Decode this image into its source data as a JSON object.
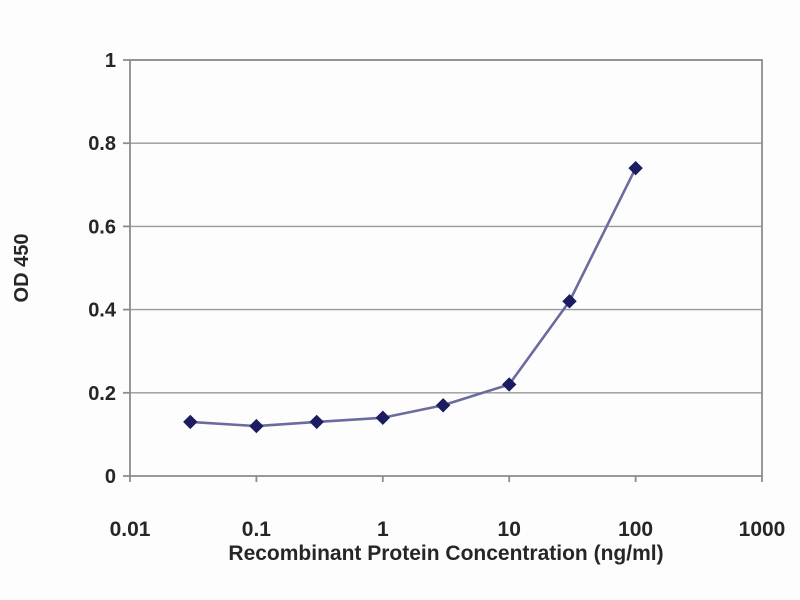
{
  "chart_data": {
    "type": "line",
    "x_scale": "log",
    "x": [
      0.03,
      0.1,
      0.3,
      1,
      3,
      10,
      30,
      100
    ],
    "y": [
      0.13,
      0.12,
      0.13,
      0.14,
      0.17,
      0.22,
      0.42,
      0.74
    ],
    "title": "",
    "xlabel": "Recombinant Protein Concentration (ng/ml)",
    "ylabel": "OD 450",
    "xlim": [
      0.01,
      1000
    ],
    "ylim": [
      0,
      1
    ],
    "x_ticks": [
      0.01,
      0.1,
      1,
      10,
      100,
      1000
    ],
    "x_tick_labels": [
      "0.01",
      "0.1",
      "1",
      "10",
      "100",
      "1000"
    ],
    "y_ticks": [
      0,
      0.2,
      0.4,
      0.6,
      0.8,
      1
    ],
    "y_tick_labels": [
      "0",
      "0.2",
      "0.4",
      "0.6",
      "0.8",
      "1"
    ],
    "grid": "horizontal-only",
    "legend": "none",
    "marker_shape": "diamond",
    "colors": {
      "line": "#6b6b9f",
      "marker": "#1c1c60",
      "grid": "#999999",
      "plot_border": "#8c8c8c",
      "text": "#262626",
      "background": "#fdfdfd"
    }
  }
}
